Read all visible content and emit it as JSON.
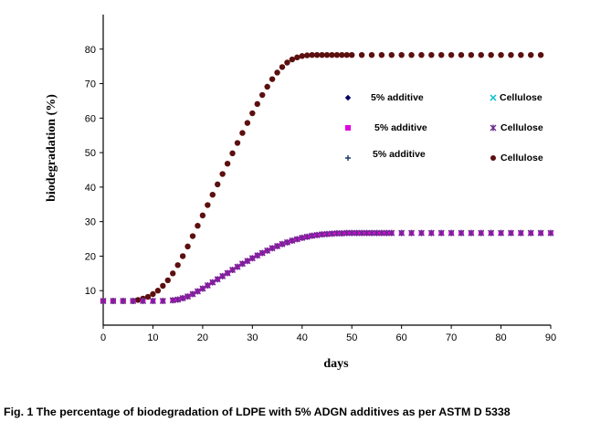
{
  "caption": "Fig. 1 The percentage of biodegradation of LDPE with 5% ADGN  additives as per ASTM D 5338",
  "colors": {
    "cellulose_fast": "#5c0f0f",
    "additive_magenta": "#e000e0",
    "additive_purple": "#6a2c8c",
    "cyan": "#00c0d0"
  },
  "chart_data": {
    "type": "scatter",
    "xlabel": "days",
    "ylabel": "biodegradation (%)",
    "xlim": [
      0,
      90
    ],
    "ylim": [
      0,
      90
    ],
    "x_ticks": [
      "0",
      "10",
      "20",
      "30",
      "40",
      "50",
      "60",
      "70",
      "80",
      "90"
    ],
    "y_ticks": [
      "10",
      "20",
      "30",
      "40",
      "50",
      "60",
      "70",
      "80"
    ],
    "y_tick_values": [
      10,
      20,
      30,
      40,
      50,
      60,
      70,
      80
    ],
    "legend": [
      {
        "text": "5% additive",
        "marker": "diamond",
        "color": "#000066"
      },
      {
        "text": "Cellulose",
        "marker": "x",
        "color": "#00c0d0"
      },
      {
        "text": "5% additive",
        "marker": "square",
        "color": "#e000e0"
      },
      {
        "text": "Cellulose",
        "marker": "asterisk",
        "color": "#6a2c8c"
      },
      {
        "text": "5% additive",
        "marker": "plus",
        "color": "#1a3a6a"
      },
      {
        "text": "Cellulose",
        "marker": "circle",
        "color": "#5c0f0f"
      }
    ],
    "series": [
      {
        "name": "Cellulose",
        "marker": "circle",
        "color": "#5c0f0f",
        "x": [
          0,
          2,
          4,
          6,
          7,
          8,
          9,
          10,
          11,
          12,
          13,
          14,
          15,
          16,
          17,
          18,
          19,
          20,
          21,
          22,
          23,
          24,
          25,
          26,
          27,
          28,
          29,
          30,
          31,
          32,
          33,
          34,
          35,
          36,
          37,
          38,
          39,
          40,
          41,
          42,
          43,
          44,
          45,
          46,
          47,
          48,
          49,
          50,
          52,
          54,
          56,
          58,
          60,
          62,
          64,
          66,
          68,
          70,
          72,
          74,
          76,
          78,
          80,
          82,
          84,
          86,
          88
        ],
        "y": [
          7,
          7,
          7,
          7,
          7.3,
          7.7,
          8.2,
          9,
          10,
          11.4,
          13,
          15,
          17.4,
          20,
          22.8,
          25.8,
          28.8,
          31.8,
          34.8,
          37.8,
          40.8,
          43.8,
          46.8,
          49.8,
          52.8,
          55.7,
          58.6,
          61.4,
          64.1,
          66.7,
          69.1,
          71.3,
          73.2,
          74.8,
          76.1,
          77,
          77.6,
          78,
          78.2,
          78.3,
          78.3,
          78.3,
          78.3,
          78.3,
          78.3,
          78.3,
          78.3,
          78.3,
          78.3,
          78.3,
          78.3,
          78.3,
          78.3,
          78.3,
          78.3,
          78.3,
          78.3,
          78.3,
          78.3,
          78.3,
          78.3,
          78.3,
          78.3,
          78.3,
          78.3,
          78.3,
          78.3
        ]
      },
      {
        "name": "5% additive",
        "marker": "square",
        "color": "#e000e0",
        "x": [
          0,
          2,
          4,
          6,
          8,
          10,
          12,
          14,
          15,
          16,
          17,
          18,
          19,
          20,
          21,
          22,
          23,
          24,
          25,
          26,
          27,
          28,
          29,
          30,
          31,
          32,
          33,
          34,
          35,
          36,
          37,
          38,
          39,
          40,
          41,
          42,
          43,
          44,
          45,
          46,
          47,
          48,
          49,
          50,
          51,
          52,
          53,
          54,
          55,
          56,
          57,
          58,
          60,
          62,
          64,
          66,
          68,
          70,
          72,
          74,
          76,
          78,
          80,
          82,
          84,
          86,
          88,
          90
        ],
        "y": [
          7,
          7,
          7,
          7,
          7,
          7,
          7,
          7.2,
          7.4,
          7.8,
          8.3,
          9,
          9.8,
          10.6,
          11.5,
          12.4,
          13.3,
          14.2,
          15.1,
          16,
          16.9,
          17.8,
          18.6,
          19.4,
          20.2,
          20.9,
          21.6,
          22.3,
          22.9,
          23.5,
          24,
          24.5,
          24.9,
          25.3,
          25.6,
          25.9,
          26.1,
          26.3,
          26.4,
          26.5,
          26.6,
          26.6,
          26.7,
          26.7,
          26.7,
          26.7,
          26.7,
          26.7,
          26.7,
          26.7,
          26.7,
          26.7,
          26.7,
          26.7,
          26.7,
          26.7,
          26.7,
          26.7,
          26.7,
          26.7,
          26.7,
          26.7,
          26.7,
          26.7,
          26.7,
          26.7,
          26.7,
          26.7
        ]
      },
      {
        "name": "Cellulose",
        "marker": "asterisk",
        "color": "#6a2c8c",
        "x": [
          0,
          2,
          4,
          6,
          8,
          10,
          12,
          14,
          15,
          16,
          17,
          18,
          19,
          20,
          21,
          22,
          23,
          24,
          25,
          26,
          27,
          28,
          29,
          30,
          31,
          32,
          33,
          34,
          35,
          36,
          37,
          38,
          39,
          40,
          41,
          42,
          43,
          44,
          45,
          46,
          47,
          48,
          49,
          50,
          51,
          52,
          53,
          54,
          55,
          56,
          57,
          58,
          60,
          62,
          64,
          66,
          68,
          70,
          72,
          74,
          76,
          78,
          80,
          82,
          84,
          86,
          88,
          90
        ],
        "y": [
          7,
          7,
          7,
          7,
          7,
          7,
          7,
          7.2,
          7.4,
          7.8,
          8.3,
          9,
          9.8,
          10.6,
          11.5,
          12.4,
          13.3,
          14.2,
          15.1,
          16,
          16.9,
          17.8,
          18.6,
          19.4,
          20.2,
          20.9,
          21.6,
          22.3,
          22.9,
          23.5,
          24,
          24.5,
          24.9,
          25.3,
          25.6,
          25.9,
          26.1,
          26.3,
          26.4,
          26.5,
          26.6,
          26.6,
          26.7,
          26.7,
          26.7,
          26.7,
          26.7,
          26.7,
          26.7,
          26.7,
          26.7,
          26.7,
          26.7,
          26.7,
          26.7,
          26.7,
          26.7,
          26.7,
          26.7,
          26.7,
          26.7,
          26.7,
          26.7,
          26.7,
          26.7,
          26.7,
          26.7,
          26.7
        ]
      }
    ]
  }
}
